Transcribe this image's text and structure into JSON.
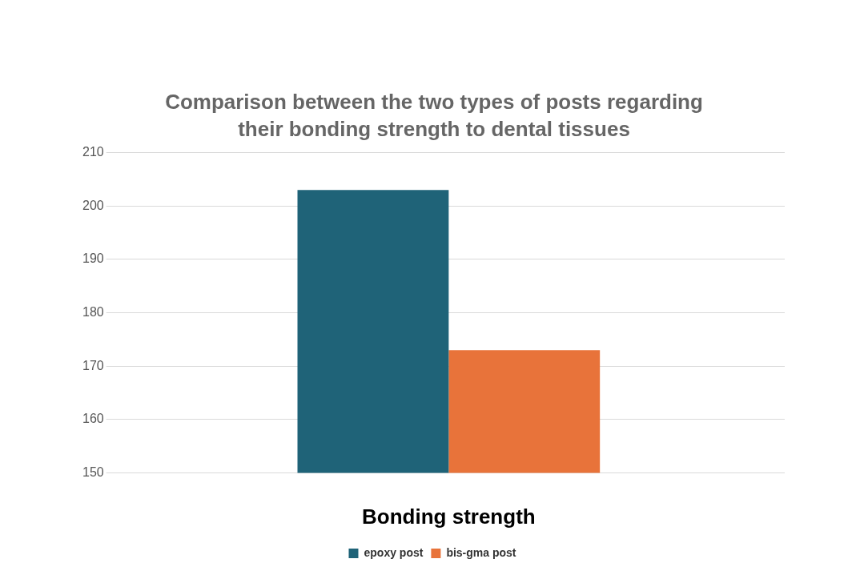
{
  "chart_data": {
    "type": "bar",
    "title": "Comparison between the two types of posts regarding their bonding strength to dental tissues",
    "xlabel": "Bonding strength",
    "categories": [
      null
    ],
    "series": [
      {
        "name": "epoxy post",
        "color": "#1f6378",
        "values": [
          203
        ]
      },
      {
        "name": "bis-gma post",
        "color": "#e8733a",
        "values": [
          173
        ]
      }
    ],
    "ylim": [
      150,
      210
    ],
    "yticks": [
      150,
      160,
      170,
      180,
      190,
      200,
      210
    ],
    "grid": "y",
    "legend": "bottom"
  }
}
